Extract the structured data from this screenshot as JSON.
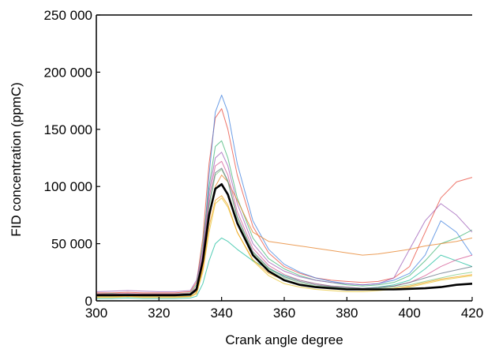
{
  "chart_data": {
    "type": "line",
    "title": "",
    "xlabel": "Crank angle degree",
    "ylabel": "FID concentration (ppmC)",
    "xlim": [
      300,
      420
    ],
    "ylim": [
      0,
      250000
    ],
    "xticks": [
      300,
      320,
      340,
      360,
      380,
      400,
      420
    ],
    "xtick_labels": [
      "300",
      "320",
      "340",
      "360",
      "380",
      "400",
      "420"
    ],
    "yticks": [
      0,
      50000,
      100000,
      150000,
      200000,
      250000
    ],
    "ytick_labels": [
      "0",
      "50 000",
      "100 000",
      "150 000",
      "200 000",
      "250 000"
    ],
    "grid": false,
    "legend": "none",
    "x": [
      300,
      305,
      310,
      315,
      320,
      325,
      330,
      332,
      334,
      336,
      338,
      340,
      342,
      345,
      350,
      355,
      360,
      365,
      370,
      375,
      380,
      385,
      390,
      395,
      400,
      405,
      410,
      415,
      420
    ],
    "series": [
      {
        "style": "mean",
        "color": "#000000",
        "values": [
          5000,
          5000,
          5000,
          5000,
          5000,
          5000,
          5500,
          10000,
          35000,
          75000,
          98000,
          102000,
          93000,
          68000,
          40000,
          26000,
          18000,
          14000,
          12000,
          11000,
          10000,
          10000,
          10000,
          10000,
          10500,
          11000,
          12000,
          14000,
          15000
        ]
      },
      {
        "color": "#e8483a",
        "values": [
          7000,
          7000,
          7500,
          7000,
          7000,
          7000,
          8000,
          16000,
          55000,
          120000,
          160000,
          168000,
          150000,
          110000,
          65000,
          42000,
          30000,
          24000,
          20000,
          18000,
          17000,
          16000,
          17000,
          20000,
          30000,
          60000,
          90000,
          104000,
          108000
        ]
      },
      {
        "color": "#3b7ddd",
        "values": [
          4000,
          4000,
          4500,
          4000,
          4000,
          4000,
          4500,
          9000,
          40000,
          110000,
          165000,
          180000,
          165000,
          120000,
          70000,
          45000,
          32000,
          25000,
          20000,
          17000,
          15000,
          14000,
          15000,
          18000,
          24000,
          40000,
          70000,
          60000,
          40000
        ]
      },
      {
        "color": "#3cb371",
        "values": [
          6000,
          6500,
          6000,
          6000,
          6000,
          6000,
          7000,
          14000,
          50000,
          100000,
          135000,
          140000,
          125000,
          90000,
          55000,
          37000,
          28000,
          22000,
          18000,
          16000,
          14000,
          13000,
          14000,
          16000,
          22000,
          35000,
          50000,
          55000,
          62000
        ]
      },
      {
        "color": "#e6c229",
        "values": [
          3000,
          3000,
          3500,
          3000,
          3000,
          3000,
          3500,
          6000,
          25000,
          60000,
          85000,
          90000,
          82000,
          60000,
          35000,
          22000,
          15000,
          12000,
          10000,
          9000,
          8000,
          8000,
          9000,
          10000,
          12000,
          15000,
          18000,
          20000,
          22000
        ]
      },
      {
        "color": "#9b59b6",
        "values": [
          8000,
          8500,
          9000,
          8500,
          8000,
          8000,
          9000,
          18000,
          45000,
          95000,
          125000,
          130000,
          118000,
          85000,
          50000,
          34000,
          26000,
          21000,
          18000,
          16000,
          15000,
          14000,
          15000,
          20000,
          45000,
          70000,
          85000,
          75000,
          60000
        ]
      },
      {
        "color": "#e67e22",
        "values": [
          5000,
          5000,
          5500,
          5000,
          5000,
          5000,
          5500,
          8000,
          30000,
          70000,
          100000,
          110000,
          104000,
          88000,
          60000,
          52000,
          50000,
          48000,
          46000,
          44000,
          42000,
          40000,
          41000,
          43000,
          45000,
          48000,
          50000,
          52000,
          55000
        ]
      },
      {
        "color": "#1abc9c",
        "values": [
          2000,
          2000,
          2500,
          2000,
          2000,
          2000,
          2500,
          4000,
          15000,
          35000,
          50000,
          55000,
          52000,
          45000,
          35000,
          28000,
          22000,
          18000,
          15000,
          13000,
          12000,
          11000,
          12000,
          14000,
          18000,
          28000,
          40000,
          35000,
          30000
        ]
      },
      {
        "color": "#d35490",
        "values": [
          6000,
          6000,
          6500,
          6000,
          6000,
          6000,
          6500,
          12000,
          42000,
          90000,
          118000,
          122000,
          110000,
          78000,
          46000,
          31000,
          23000,
          18000,
          15000,
          13000,
          12000,
          11000,
          11500,
          13000,
          16000,
          22000,
          30000,
          36000,
          40000
        ]
      },
      {
        "color": "#7fc97f",
        "values": [
          4000,
          4000,
          4500,
          4000,
          4000,
          4000,
          4500,
          9000,
          35000,
          82000,
          110000,
          115000,
          104000,
          72000,
          42000,
          28000,
          20000,
          16000,
          13000,
          12000,
          11000,
          10500,
          11000,
          12000,
          14000,
          17000,
          20000,
          23000,
          25000
        ]
      },
      {
        "color": "#5d6d7e",
        "values": [
          5000,
          5200,
          5500,
          5200,
          5000,
          5000,
          5500,
          11000,
          38000,
          85000,
          112000,
          116000,
          105000,
          74000,
          43000,
          29000,
          21000,
          17000,
          14000,
          12500,
          11500,
          11000,
          11500,
          13000,
          16000,
          20000,
          24000,
          27000,
          30000
        ]
      },
      {
        "color": "#f39c12",
        "values": [
          3500,
          3500,
          4000,
          3500,
          3500,
          3500,
          4000,
          7000,
          28000,
          65000,
          88000,
          92000,
          84000,
          60000,
          36000,
          24000,
          18000,
          14000,
          12000,
          11000,
          10000,
          9500,
          10000,
          11000,
          13000,
          16000,
          19000,
          21000,
          23000
        ]
      }
    ]
  }
}
